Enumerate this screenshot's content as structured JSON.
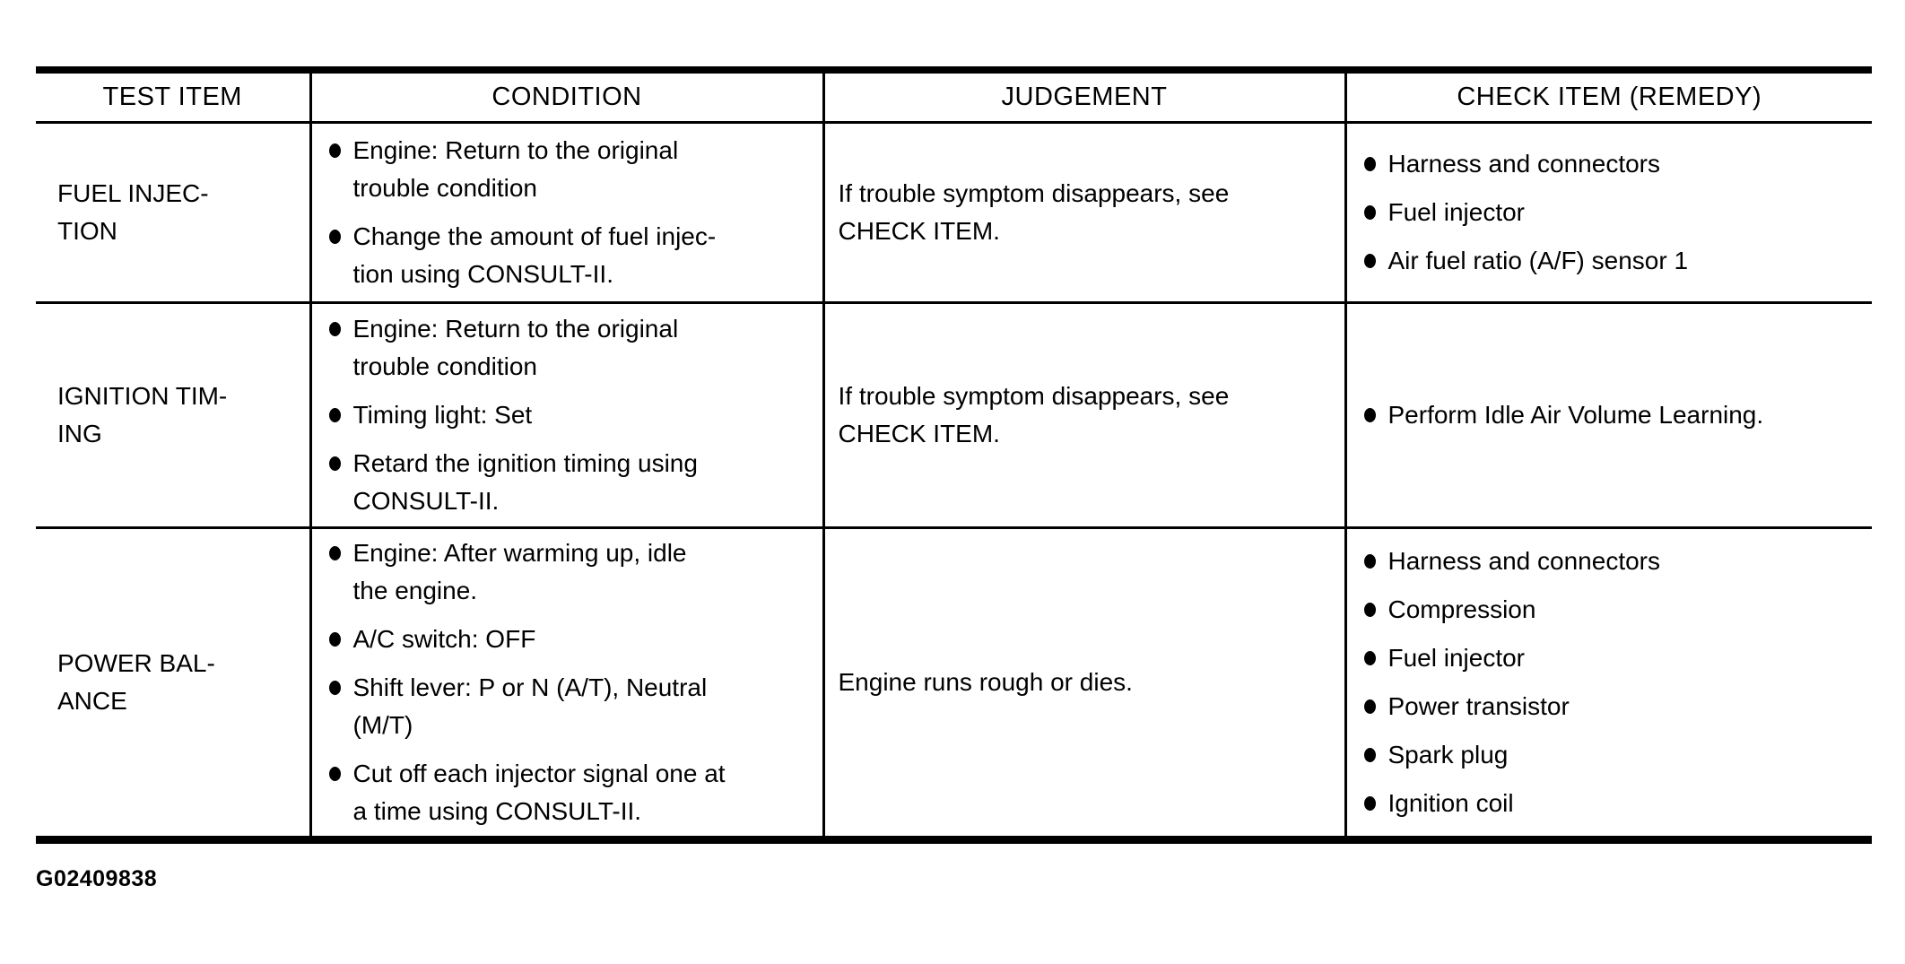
{
  "colors": {
    "ink": "#000000",
    "paper": "#ffffff"
  },
  "document": {
    "figure_code": "G02409838"
  },
  "table": {
    "headers": [
      "TEST ITEM",
      "CONDITION",
      "JUDGEMENT",
      "CHECK ITEM (REMEDY)"
    ],
    "rows": [
      {
        "test_item": "FUEL INJEC-\nTION",
        "conditions": [
          "Engine: Return to the original\ntrouble condition",
          "Change the amount of fuel injec-\ntion using CONSULT-II."
        ],
        "judgement": "If trouble symptom disappears, see\nCHECK ITEM.",
        "check_items": [
          "Harness and connectors",
          "Fuel injector",
          "Air fuel ratio (A/F) sensor 1"
        ]
      },
      {
        "test_item": "IGNITION TIM-\nING",
        "conditions": [
          "Engine: Return to the original\ntrouble condition",
          "Timing light: Set",
          "Retard the ignition timing using\nCONSULT-II."
        ],
        "judgement": "If trouble symptom disappears, see\nCHECK ITEM.",
        "check_items": [
          "Perform Idle Air Volume Learning."
        ]
      },
      {
        "test_item": "POWER BAL-\nANCE",
        "conditions": [
          "Engine: After warming up, idle\nthe engine.",
          "A/C switch: OFF",
          "Shift lever: P or N (A/T), Neutral\n(M/T)",
          "Cut off each injector signal one at\na time using CONSULT-II."
        ],
        "judgement": "Engine runs rough or dies.",
        "check_items": [
          "Harness and connectors",
          "Compression",
          "Fuel injector",
          "Power transistor",
          "Spark plug",
          "Ignition coil"
        ]
      }
    ]
  }
}
